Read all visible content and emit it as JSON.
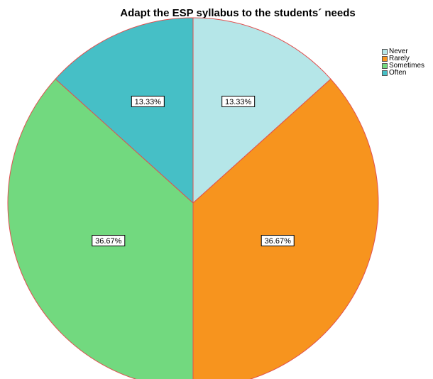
{
  "chart_data": {
    "type": "pie",
    "title": "Adapt the ESP syllabus to the students´ needs",
    "categories": [
      "Never",
      "Rarely",
      "Sometimes",
      "Often"
    ],
    "values": [
      13.33,
      36.67,
      36.67,
      13.33
    ],
    "data_labels": [
      "13.33%",
      "36.67%",
      "36.67%",
      "13.33%"
    ],
    "colors": [
      "#b5e6e8",
      "#f7941e",
      "#72d97f",
      "#46bfc6"
    ],
    "slice_border_color": "#e05050",
    "legend_position": "top-right"
  }
}
